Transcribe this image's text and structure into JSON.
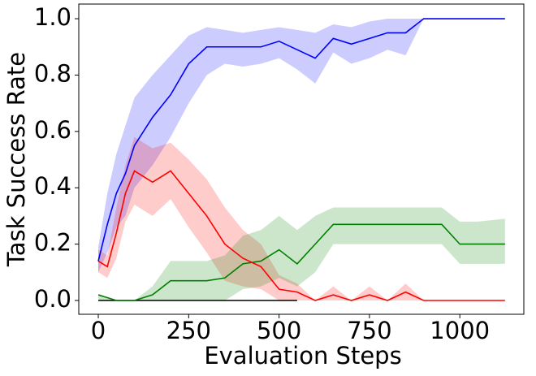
{
  "chart_data": {
    "type": "line",
    "xlabel": "Evaluation Steps",
    "ylabel": "Task Success Rate",
    "x": [
      0,
      25,
      50,
      75,
      100,
      150,
      200,
      250,
      300,
      350,
      400,
      450,
      500,
      550,
      600,
      650,
      700,
      750,
      800,
      850,
      900,
      950,
      1000,
      1050,
      1125
    ],
    "xlim": [
      -54,
      1177
    ],
    "ylim": [
      -0.049,
      1.052
    ],
    "xticks": [
      0,
      250,
      500,
      750,
      1000
    ],
    "yticks": [
      {
        "value": 0,
        "label": "0.0"
      },
      {
        "value": 0.2,
        "label": "0.2"
      },
      {
        "value": 0.4,
        "label": "0.4"
      },
      {
        "value": 0.6,
        "label": "0.6"
      },
      {
        "value": 0.8,
        "label": "0.8"
      },
      {
        "value": 1,
        "label": "1.0"
      }
    ],
    "grid": false,
    "series": [
      {
        "color": "#0000ff",
        "values": [
          0.14,
          0.27,
          0.38,
          0.45,
          0.55,
          0.65,
          0.73,
          0.84,
          0.9,
          0.9,
          0.9,
          0.9,
          0.92,
          0.89,
          0.86,
          0.93,
          0.91,
          0.93,
          0.95,
          0.95,
          1,
          1,
          1,
          1,
          1
        ],
        "upper": [
          0.19,
          0.38,
          0.52,
          0.62,
          0.72,
          0.8,
          0.87,
          0.94,
          0.97,
          0.96,
          0.95,
          0.96,
          0.97,
          0.96,
          0.95,
          0.98,
          0.97,
          0.99,
          1,
          1,
          1,
          1,
          1,
          1,
          1
        ],
        "lower": [
          0.1,
          0.17,
          0.26,
          0.3,
          0.4,
          0.48,
          0.58,
          0.7,
          0.8,
          0.84,
          0.83,
          0.84,
          0.86,
          0.82,
          0.77,
          0.88,
          0.84,
          0.86,
          0.89,
          0.87,
          1,
          1,
          1,
          1,
          1
        ]
      },
      {
        "color": "#ff0000",
        "values": [
          0.14,
          0.12,
          0.24,
          0.38,
          0.46,
          0.42,
          0.46,
          0.38,
          0.3,
          0.2,
          0.15,
          0.12,
          0.04,
          0.03,
          0,
          0.02,
          0,
          0.02,
          0,
          0.03,
          0,
          0,
          0,
          0,
          0
        ],
        "upper": [
          0.18,
          0.16,
          0.33,
          0.48,
          0.58,
          0.54,
          0.56,
          0.5,
          0.43,
          0.33,
          0.25,
          0.2,
          0.09,
          0.06,
          0,
          0.05,
          0,
          0.05,
          0,
          0.06,
          0,
          0,
          0,
          0,
          0
        ],
        "lower": [
          0.1,
          0.08,
          0.15,
          0.28,
          0.34,
          0.3,
          0.36,
          0.26,
          0.17,
          0.07,
          0.05,
          0.04,
          0,
          0,
          0,
          0,
          0,
          0,
          0,
          0,
          0,
          0,
          0,
          0,
          0
        ]
      },
      {
        "color": "#008000",
        "values": [
          0.02,
          0.01,
          0,
          0,
          0,
          0.02,
          0.07,
          0.07,
          0.07,
          0.08,
          0.13,
          0.14,
          0.18,
          0.13,
          0.2,
          0.27,
          0.27,
          0.27,
          0.27,
          0.27,
          0.27,
          0.27,
          0.2,
          0.2,
          0.2
        ],
        "upper": [
          0.02,
          0.01,
          0,
          0,
          0,
          0.05,
          0.14,
          0.14,
          0.14,
          0.16,
          0.23,
          0.25,
          0.3,
          0.25,
          0.3,
          0.33,
          0.33,
          0.33,
          0.33,
          0.33,
          0.33,
          0.33,
          0.28,
          0.28,
          0.29
        ],
        "lower": [
          0,
          0,
          0,
          0,
          0,
          0,
          0,
          0,
          0,
          0,
          0.04,
          0.05,
          0.08,
          0.05,
          0.1,
          0.2,
          0.2,
          0.2,
          0.2,
          0.2,
          0.2,
          0.2,
          0.13,
          0.13,
          0.13
        ]
      },
      {
        "color": "#000000",
        "values": [
          0,
          0,
          0,
          0,
          0,
          0,
          0,
          0,
          0,
          0,
          0,
          0,
          0,
          0,
          null,
          null,
          null,
          null,
          null,
          null,
          null,
          null,
          null,
          null,
          null
        ]
      }
    ]
  }
}
